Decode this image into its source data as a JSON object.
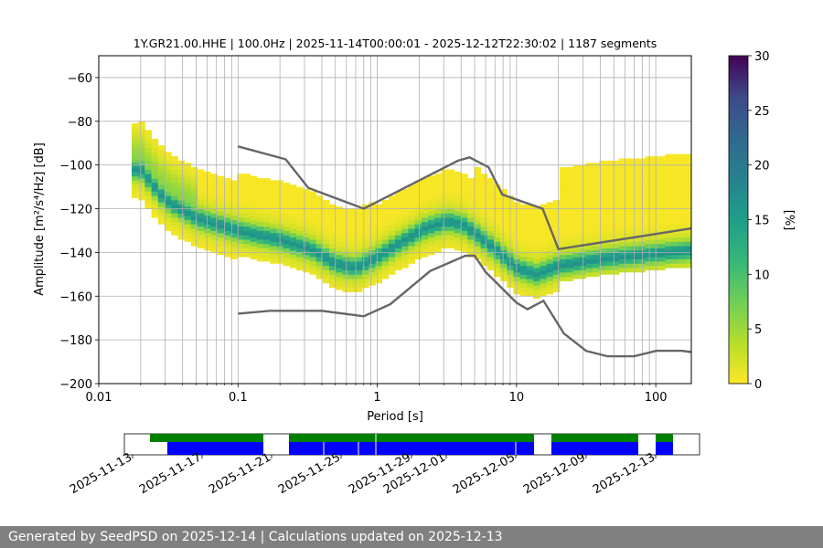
{
  "chart_data": {
    "type": "heatmap",
    "title": "1Y.GR21.00.HHE | 100.0Hz | 2025-11-14T00:00:01 - 2025-12-12T22:30:02 | 1187 segments",
    "xlabel": "Period [s]",
    "ylabel": "Amplitude [m²/s⁴/Hz] [dB]",
    "x_scale": "log",
    "xlim": [
      0.01,
      180
    ],
    "ylim": [
      -200,
      -50
    ],
    "x_ticks": [
      {
        "value": 0.01,
        "label": "0.01"
      },
      {
        "value": 0.1,
        "label": "0.1"
      },
      {
        "value": 1,
        "label": "1"
      },
      {
        "value": 10,
        "label": "10"
      },
      {
        "value": 100,
        "label": "100"
      }
    ],
    "y_ticks": [
      -60,
      -80,
      -100,
      -120,
      -140,
      -160,
      -180,
      -200
    ],
    "grid": true,
    "colormap": "viridis_r",
    "colorbar": {
      "label": "[%]",
      "min": 0,
      "max": 30,
      "ticks": [
        0,
        5,
        10,
        15,
        20,
        25,
        30
      ]
    },
    "noise_model_high": [
      [
        0.1,
        -91.5
      ],
      [
        0.22,
        -97.4
      ],
      [
        0.32,
        -110.5
      ],
      [
        0.8,
        -120
      ],
      [
        3.8,
        -98
      ],
      [
        4.6,
        -96.5
      ],
      [
        6.3,
        -101
      ],
      [
        7.9,
        -113.5
      ],
      [
        15.4,
        -120
      ],
      [
        20,
        -138.5
      ],
      [
        180,
        -129
      ]
    ],
    "noise_model_low": [
      [
        0.1,
        -168
      ],
      [
        0.17,
        -166.7
      ],
      [
        0.4,
        -166.7
      ],
      [
        0.8,
        -169.2
      ],
      [
        1.24,
        -163.7
      ],
      [
        2.4,
        -148.5
      ],
      [
        4.3,
        -141.5
      ],
      [
        5.0,
        -141.5
      ],
      [
        6.0,
        -149
      ],
      [
        10,
        -163
      ],
      [
        12,
        -166
      ],
      [
        15.6,
        -162.1
      ],
      [
        21.9,
        -177.1
      ],
      [
        31.6,
        -185
      ],
      [
        45,
        -187.5
      ],
      [
        70,
        -187.5
      ],
      [
        101,
        -185
      ],
      [
        154,
        -185
      ],
      [
        180,
        -185.6
      ]
    ],
    "mode_curve": [
      [
        0.02,
        -103
      ],
      [
        0.03,
        -117
      ],
      [
        0.05,
        -125
      ],
      [
        0.1,
        -131
      ],
      [
        0.2,
        -135
      ],
      [
        0.35,
        -140
      ],
      [
        0.5,
        -146
      ],
      [
        0.7,
        -148
      ],
      [
        1.0,
        -143
      ],
      [
        1.5,
        -136
      ],
      [
        2.2,
        -130
      ],
      [
        3.2,
        -126.5
      ],
      [
        4.2,
        -128.5
      ],
      [
        5.5,
        -134
      ],
      [
        7.5,
        -141
      ],
      [
        10,
        -148
      ],
      [
        14,
        -151
      ],
      [
        20,
        -147
      ],
      [
        40,
        -144
      ],
      [
        80,
        -142
      ],
      [
        180,
        -140
      ]
    ]
  },
  "timeline": {
    "date_labels": [
      "2025-11-13",
      "2025-11-17",
      "2025-11-21",
      "2025-11-25",
      "2025-11-29",
      "2025-12-01",
      "2025-12-05",
      "2025-12-09",
      "2025-12-13"
    ],
    "green_bar_color": "#008000",
    "blue_bar_color": "#0000ff"
  },
  "footer": {
    "text": "Generated by SeedPSD on 2025-12-14 | Calculations updated on 2025-12-13"
  }
}
